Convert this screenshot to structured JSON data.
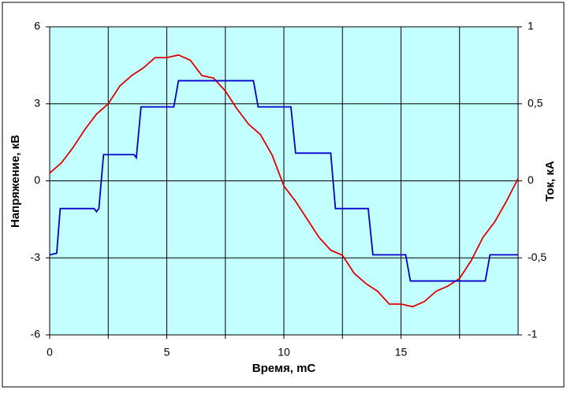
{
  "chart_data": {
    "type": "line",
    "xlabel": "Время, mС",
    "ylabel": "Напряжение, кВ",
    "y2label": "Ток, кА",
    "xlim": [
      0,
      20
    ],
    "xticks": [
      0,
      5,
      10,
      15
    ],
    "x_minor_grid": [
      2.5,
      7.5,
      12.5,
      17.5
    ],
    "ylim": [
      -6,
      6
    ],
    "yticks": [
      -6,
      -3,
      0,
      3,
      6
    ],
    "y2lim": [
      -1,
      1
    ],
    "y2ticks": [
      -1,
      {
        "value": -0.5,
        "label": "-0,5"
      },
      0,
      {
        "value": 0.5,
        "label": "0,5"
      },
      1
    ],
    "grid": true,
    "background": "#c4ffff",
    "series": [
      {
        "color": "#e00000",
        "x": [
          0,
          0.5,
          1,
          1.5,
          2,
          2.5,
          3,
          3.5,
          4,
          4.5,
          5,
          5.5,
          6,
          6.5,
          7,
          7.5,
          8,
          8.5,
          9,
          9.5,
          10,
          10.5,
          11,
          11.5,
          12,
          12.5,
          13,
          13.5,
          14,
          14.5,
          15,
          15.5,
          16,
          16.5,
          17,
          17.5,
          18,
          18.5,
          19,
          19.5,
          20
        ],
        "values": [
          0.3,
          0.7,
          1.3,
          2.0,
          2.6,
          3.0,
          3.7,
          4.1,
          4.4,
          4.8,
          4.8,
          4.9,
          4.7,
          4.1,
          4.0,
          3.5,
          2.8,
          2.2,
          1.8,
          1.0,
          -0.2,
          -0.8,
          -1.5,
          -2.2,
          -2.7,
          -2.9,
          -3.6,
          -4.0,
          -4.3,
          -4.8,
          -4.8,
          -4.9,
          -4.7,
          -4.3,
          -4.1,
          -3.8,
          -3.1,
          -2.2,
          -1.6,
          -0.8,
          0.1
        ]
      },
      {
        "color": "#0000cc",
        "axis": "y2",
        "x": [
          0,
          0.3,
          0.45,
          1.9,
          2.0,
          2.1,
          2.3,
          3.6,
          3.7,
          3.9,
          5.3,
          5.5,
          8.7,
          8.9,
          10.3,
          10.5,
          12.0,
          12.2,
          13.6,
          13.8,
          15.2,
          15.4,
          18.6,
          18.8,
          20
        ],
        "values": [
          -0.48,
          -0.47,
          -0.18,
          -0.18,
          -0.2,
          -0.18,
          0.17,
          0.17,
          0.15,
          0.48,
          0.48,
          0.65,
          0.65,
          0.48,
          0.48,
          0.18,
          0.18,
          -0.18,
          -0.18,
          -0.48,
          -0.48,
          -0.65,
          -0.65,
          -0.48,
          -0.48
        ]
      }
    ]
  }
}
